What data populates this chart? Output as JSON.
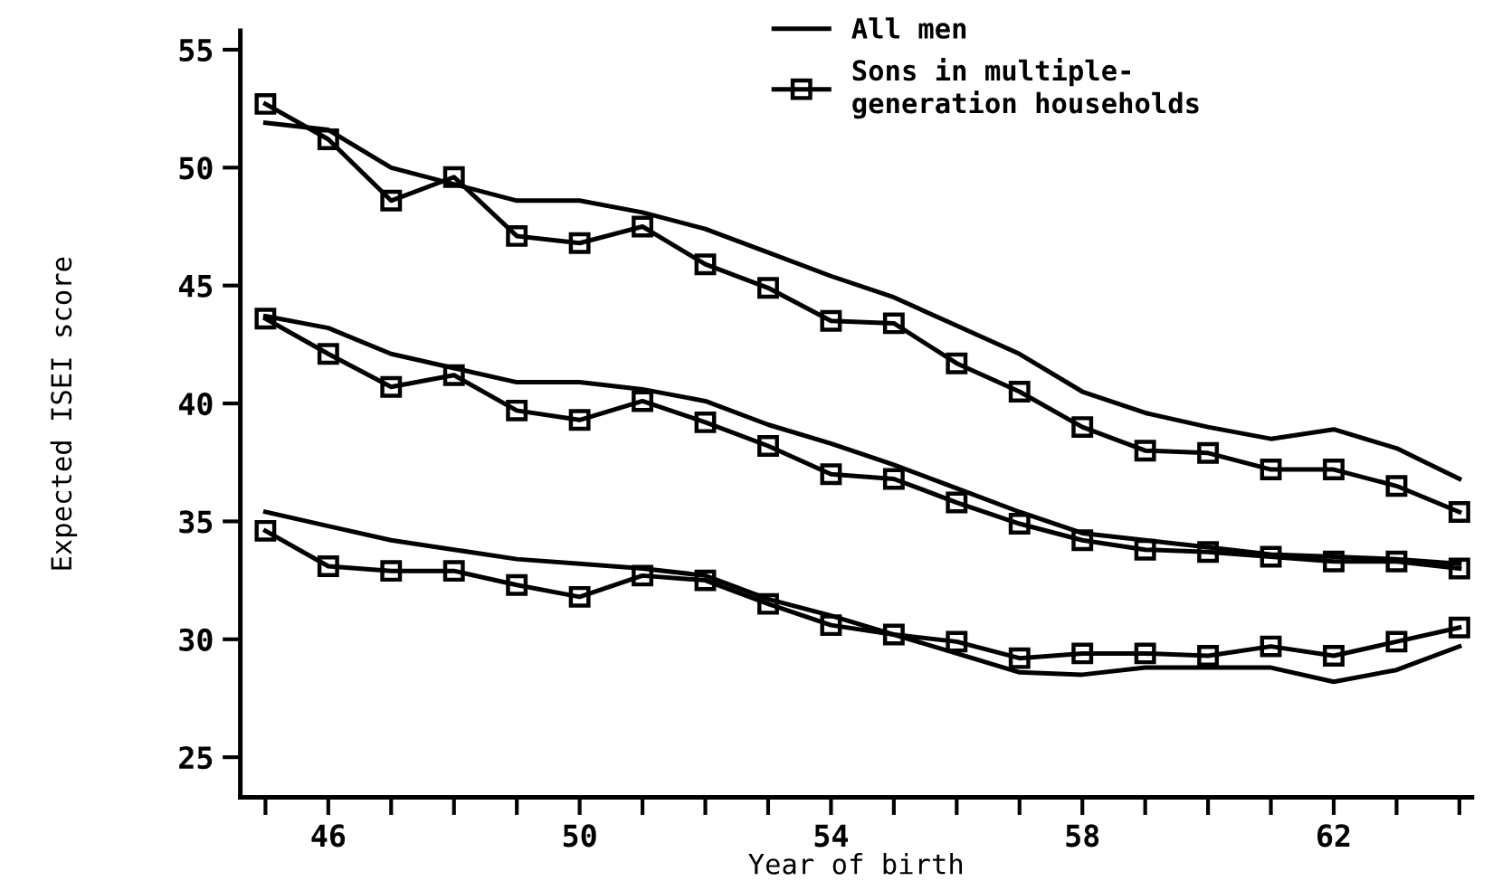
{
  "chart_data": {
    "type": "line",
    "xlabel": "Year of birth",
    "ylabel": "Expected ISEI score",
    "x": [
      45,
      46,
      47,
      48,
      49,
      50,
      51,
      52,
      53,
      54,
      55,
      56,
      57,
      58,
      59,
      60,
      61,
      62,
      63,
      64
    ],
    "xlim": [
      44.6,
      64.2
    ],
    "ylim": [
      23.3,
      55.8
    ],
    "xticks": [
      {
        "value": 45,
        "label": null
      },
      46,
      {
        "value": 47,
        "label": null
      },
      {
        "value": 48,
        "label": null
      },
      {
        "value": 49,
        "label": null
      },
      50,
      {
        "value": 51,
        "label": null
      },
      {
        "value": 52,
        "label": null
      },
      {
        "value": 53,
        "label": null
      },
      54,
      {
        "value": 55,
        "label": null
      },
      {
        "value": 56,
        "label": null
      },
      {
        "value": 57,
        "label": null
      },
      58,
      {
        "value": 59,
        "label": null
      },
      {
        "value": 60,
        "label": null
      },
      {
        "value": 61,
        "label": null
      },
      62,
      {
        "value": 63,
        "label": null
      },
      {
        "value": 64,
        "label": null
      }
    ],
    "yticks": [
      25,
      30,
      35,
      40,
      45,
      50,
      55
    ],
    "grid": false,
    "legend": "top right",
    "series": [
      {
        "name": "All men",
        "color": "#000000",
        "marker": "none",
        "values": [
          51.9,
          51.6,
          50.0,
          49.3,
          48.6,
          48.6,
          48.1,
          47.4,
          46.4,
          45.4,
          44.5,
          43.3,
          42.1,
          40.5,
          39.6,
          39.0,
          38.5,
          38.9,
          38.1,
          36.8
        ]
      },
      {
        "name": "Sons in multiple-\ngeneration households",
        "color": "#000000",
        "marker": "square",
        "values": [
          52.7,
          51.2,
          48.6,
          49.6,
          47.1,
          46.8,
          47.5,
          45.9,
          44.9,
          43.5,
          43.4,
          41.7,
          40.5,
          39.0,
          38.0,
          37.9,
          37.2,
          37.2,
          36.5,
          35.4
        ]
      },
      {
        "color": "#000000",
        "marker": "none",
        "values": [
          43.7,
          43.2,
          42.1,
          41.5,
          40.9,
          40.9,
          40.6,
          40.1,
          39.1,
          38.3,
          37.4,
          36.4,
          35.4,
          34.5,
          34.2,
          33.9,
          33.6,
          33.5,
          33.4,
          33.2
        ]
      },
      {
        "color": "#000000",
        "marker": "square",
        "values": [
          43.6,
          42.1,
          40.7,
          41.2,
          39.7,
          39.3,
          40.1,
          39.2,
          38.2,
          37.0,
          36.8,
          35.8,
          34.9,
          34.2,
          33.8,
          33.7,
          33.5,
          33.3,
          33.3,
          33.0
        ]
      },
      {
        "color": "#000000",
        "marker": "none",
        "values": [
          35.4,
          34.8,
          34.2,
          33.8,
          33.4,
          33.2,
          33.0,
          32.7,
          31.7,
          31.0,
          30.2,
          29.4,
          28.6,
          28.5,
          28.8,
          28.8,
          28.8,
          28.2,
          28.7,
          29.7
        ]
      },
      {
        "color": "#000000",
        "marker": "square",
        "values": [
          34.6,
          33.1,
          32.9,
          32.9,
          32.3,
          31.8,
          32.7,
          32.5,
          31.5,
          30.6,
          30.2,
          29.9,
          29.2,
          29.4,
          29.4,
          29.3,
          29.7,
          29.3,
          29.9,
          30.5
        ]
      }
    ]
  }
}
